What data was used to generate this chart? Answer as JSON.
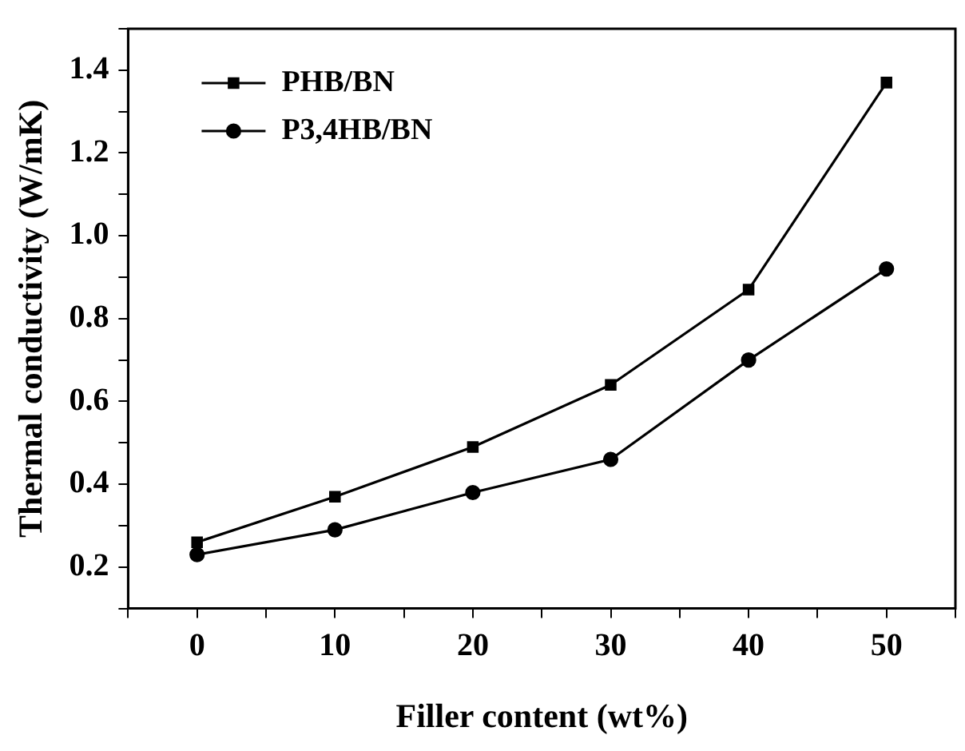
{
  "chart_data": {
    "type": "line",
    "xlabel": "Filler content (wt%)",
    "ylabel": "Thermal conductivity (W/mK)",
    "x": [
      0,
      10,
      20,
      30,
      40,
      50
    ],
    "series": [
      {
        "name": "PHB/BN",
        "color": "#000000",
        "marker": "square",
        "values": [
          0.26,
          0.37,
          0.49,
          0.64,
          0.87,
          1.37
        ]
      },
      {
        "name": "P3,4HB/BN",
        "color": "#000000",
        "marker": "circle",
        "values": [
          0.23,
          0.29,
          0.38,
          0.46,
          0.7,
          0.92
        ]
      }
    ],
    "xlim": [
      -5,
      55
    ],
    "xticks": [
      {
        "value": -5,
        "label": null
      },
      0,
      {
        "value": 5,
        "label": null
      },
      10,
      {
        "value": 15,
        "label": null
      },
      20,
      {
        "value": 25,
        "label": null
      },
      30,
      {
        "value": 35,
        "label": null
      },
      40,
      {
        "value": 45,
        "label": null
      },
      50,
      {
        "value": 55,
        "label": null
      }
    ],
    "ylim": [
      0.1,
      1.5
    ],
    "yticks": [
      {
        "value": 0.1,
        "label": null
      },
      0.2,
      {
        "value": 0.3,
        "label": null
      },
      0.4,
      {
        "value": 0.5,
        "label": null
      },
      0.6,
      {
        "value": 0.7,
        "label": null
      },
      0.8,
      {
        "value": 0.9,
        "label": null
      },
      {
        "value": 1,
        "label": "1.0"
      },
      {
        "value": 1.1,
        "label": null
      },
      1.2,
      {
        "value": 1.3,
        "label": null
      },
      1.4,
      {
        "value": 1.5,
        "label": null
      }
    ],
    "grid": false,
    "legend": "top left",
    "line_style": "solid"
  }
}
